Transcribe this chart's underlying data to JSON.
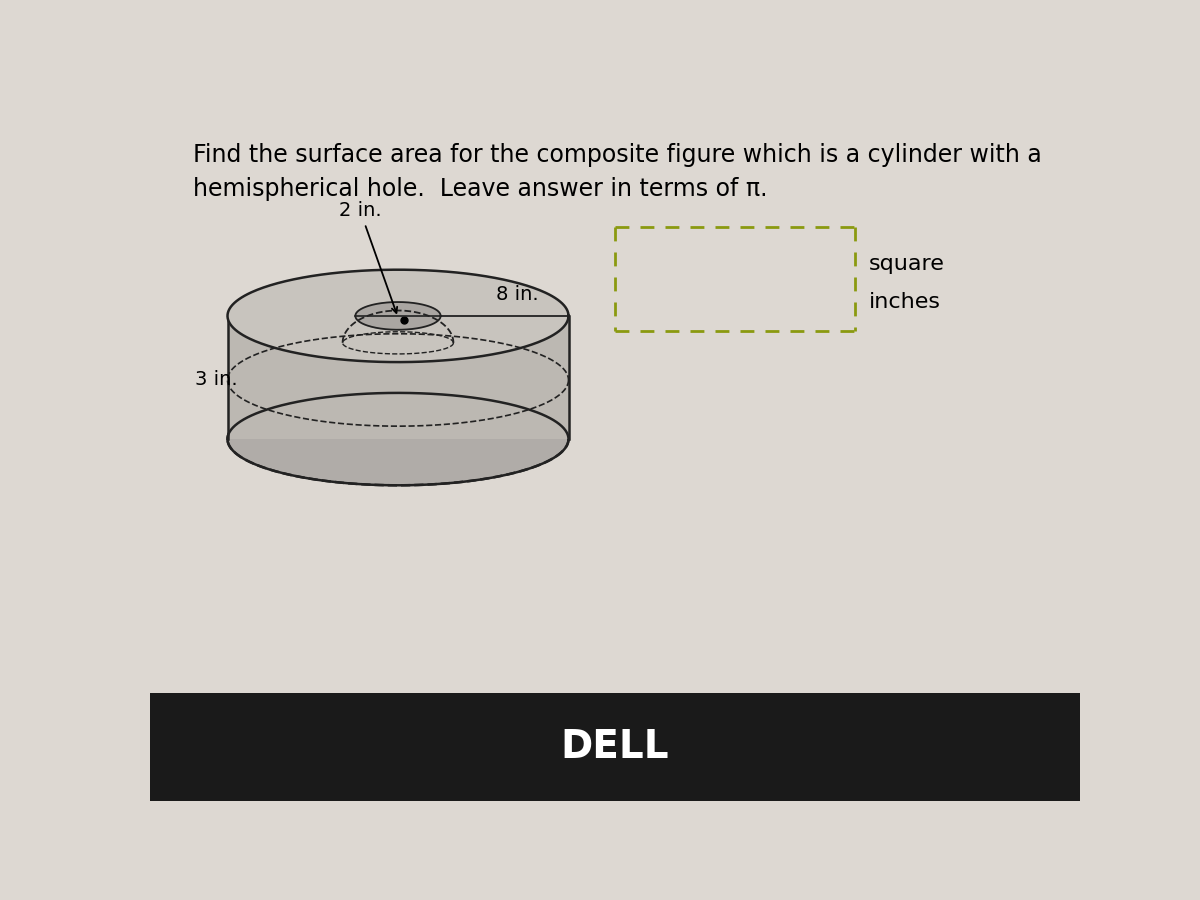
{
  "title_line1": "Find the surface area for the composite figure which is a cylinder with a",
  "title_line2": "hemispherical hole.  Leave answer in terms of π.",
  "title_fontsize": 17,
  "bg_color": "#ddd8d2",
  "cylinder_top_color": "#c8c4be",
  "cylinder_side_color": "#bcb8b2",
  "cylinder_bottom_color": "#b0aca8",
  "hole_color": "#aaa6a2",
  "edge_color": "#222222",
  "label_2in": "2 in.",
  "label_8in": "8 in.",
  "label_3in": "3 in.",
  "label_fontsize": 14,
  "answer_box_color": "#8a9a10",
  "square_inches_text1": "square",
  "square_inches_text2": "inches",
  "dell_text": "DELL",
  "bottom_bar_color": "#1a1a1a"
}
